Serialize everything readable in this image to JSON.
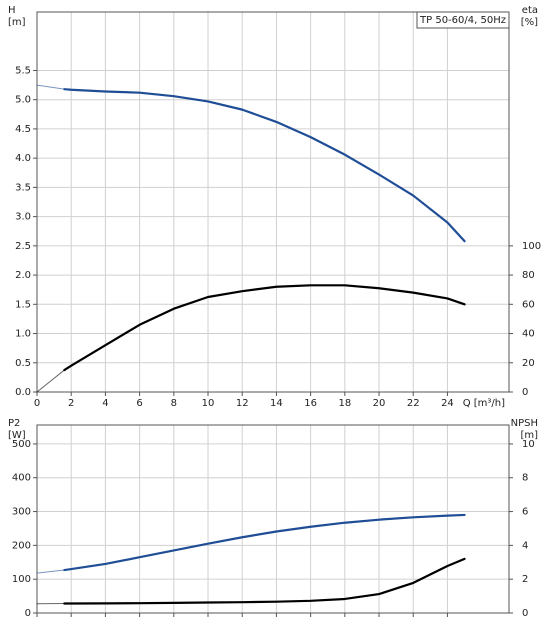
{
  "chart_data": [
    {
      "type": "line",
      "title": "TP 50-60/4, 50Hz",
      "x_label": "Q [m³/h]",
      "y_label": [
        "H",
        "[m]"
      ],
      "y2_label": [
        "eta",
        "[%]"
      ],
      "x": [
        0,
        1.6,
        2,
        4,
        6,
        8,
        10,
        12,
        14,
        16,
        18,
        20,
        22,
        24,
        25
      ],
      "xlim": [
        0,
        27.6
      ],
      "xticks": [
        0,
        2,
        4,
        6,
        8,
        10,
        12,
        14,
        16,
        18,
        20,
        22,
        24
      ],
      "ylim": [
        0,
        6.5
      ],
      "yticks": [
        {
          "value": 0,
          "label": "0.0"
        },
        {
          "value": 0.5,
          "label": "0.5"
        },
        {
          "value": 1,
          "label": "1.0"
        },
        {
          "value": 1.5,
          "label": "1.5"
        },
        {
          "value": 2,
          "label": "2.0"
        },
        {
          "value": 2.5,
          "label": "2.5"
        },
        {
          "value": 3,
          "label": "3.0"
        },
        {
          "value": 3.5,
          "label": "3.5"
        },
        {
          "value": 4,
          "label": "4.0"
        },
        {
          "value": 4.5,
          "label": "4.5"
        },
        {
          "value": 5,
          "label": "5.0"
        },
        {
          "value": 5.5,
          "label": "5.5"
        }
      ],
      "y2lim": [
        0,
        260
      ],
      "y2ticks": [
        0,
        20,
        40,
        60,
        80,
        100
      ],
      "grid": true,
      "series": [
        {
          "color": "#1f4e96",
          "values": [
            5.25,
            5.18,
            5.17,
            5.14,
            5.12,
            5.06,
            4.97,
            4.83,
            4.62,
            4.36,
            4.06,
            3.72,
            3.36,
            2.9,
            2.58
          ]
        },
        {
          "color": "#000000",
          "axis": "y2",
          "values": [
            0,
            15,
            18,
            32,
            46,
            57,
            65,
            69,
            72,
            73,
            73,
            71,
            68,
            64,
            60
          ]
        }
      ]
    },
    {
      "type": "line",
      "y_label": [
        "P2",
        "[W]"
      ],
      "y2_label": [
        "NPSH",
        "[m]"
      ],
      "x": [
        0,
        1.6,
        2,
        4,
        6,
        8,
        10,
        12,
        14,
        16,
        18,
        20,
        22,
        24,
        25
      ],
      "xlim": [
        0,
        27.6
      ],
      "xticks": [
        0,
        2,
        4,
        6,
        8,
        10,
        12,
        14,
        16,
        18,
        20,
        22,
        24
      ],
      "ylim": [
        0,
        556
      ],
      "yticks": [
        0,
        100,
        200,
        300,
        400,
        500
      ],
      "y2lim": [
        0,
        11.12
      ],
      "y2ticks": [
        0,
        2,
        4,
        6,
        8,
        10
      ],
      "grid": true,
      "series": [
        {
          "color": "#1f4e96",
          "values": [
            118,
            127,
            130,
            145,
            165,
            185,
            205,
            224,
            241,
            255,
            267,
            276,
            283,
            288,
            290
          ]
        },
        {
          "color": "#000000",
          "axis": "y2",
          "values": [
            0.55,
            0.56,
            0.56,
            0.57,
            0.58,
            0.6,
            0.62,
            0.64,
            0.67,
            0.72,
            0.83,
            1.12,
            1.78,
            2.78,
            3.2
          ]
        }
      ]
    }
  ]
}
